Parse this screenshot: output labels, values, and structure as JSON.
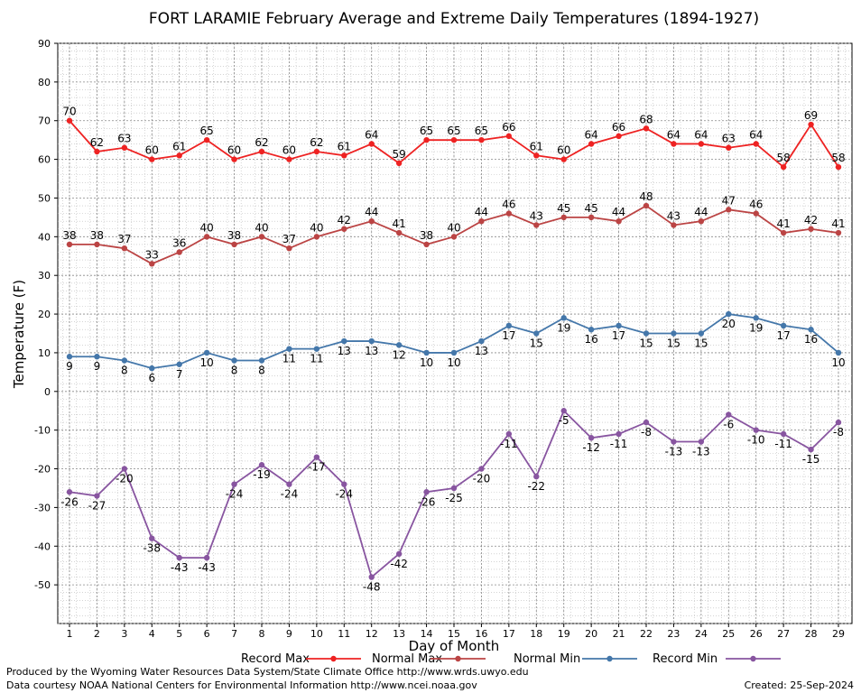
{
  "footer": {
    "produced_by": "Produced by the Wyoming Water Resources Data System/State Climate Office http://www.wrds.uwyo.edu",
    "courtesy": "Data courtesy NOAA National Centers for Environmental Information http://www.ncei.noaa.gov",
    "created": "Created: 25-Sep-2024"
  },
  "chart_data": {
    "type": "line",
    "title": "FORT LARAMIE February Average and Extreme Daily Temperatures (1894-1927)",
    "xlabel": "Day of Month",
    "ylabel": "Temperature (F)",
    "ylim": [
      -60,
      90
    ],
    "yticks": [
      90,
      80,
      70,
      60,
      50,
      40,
      30,
      20,
      10,
      0,
      -10,
      -20,
      -30,
      -40,
      -50
    ],
    "x": [
      1,
      2,
      3,
      4,
      5,
      6,
      7,
      8,
      9,
      10,
      11,
      12,
      13,
      14,
      15,
      16,
      17,
      18,
      19,
      20,
      21,
      22,
      23,
      24,
      25,
      26,
      27,
      28,
      29
    ],
    "grid": true,
    "legend_position": "bottom",
    "series": [
      {
        "name": "Record Max",
        "color": "#ee2222",
        "label_pos": "above",
        "values": [
          70,
          62,
          63,
          60,
          61,
          65,
          60,
          62,
          60,
          62,
          61,
          64,
          59,
          65,
          65,
          65,
          66,
          61,
          60,
          64,
          66,
          68,
          64,
          64,
          63,
          64,
          58,
          69,
          58
        ]
      },
      {
        "name": "Normal Max",
        "color": "#bb4444",
        "label_pos": "above",
        "values": [
          38,
          38,
          37,
          33,
          36,
          40,
          38,
          40,
          37,
          40,
          42,
          44,
          41,
          38,
          40,
          44,
          46,
          43,
          45,
          45,
          44,
          48,
          43,
          44,
          47,
          46,
          41,
          42,
          41
        ]
      },
      {
        "name": "Normal Min",
        "color": "#4477aa",
        "label_pos": "below",
        "values": [
          9,
          9,
          8,
          6,
          7,
          10,
          8,
          8,
          11,
          11,
          13,
          13,
          12,
          10,
          10,
          13,
          17,
          15,
          19,
          16,
          17,
          15,
          15,
          15,
          20,
          19,
          17,
          16,
          10
        ]
      },
      {
        "name": "Record Min",
        "color": "#8855a0",
        "label_pos": "below",
        "values": [
          -26,
          -27,
          -20,
          -38,
          -43,
          -43,
          -24,
          -19,
          -24,
          -17,
          -24,
          -48,
          -42,
          -26,
          -25,
          -20,
          -11,
          -22,
          -5,
          -12,
          -11,
          -8,
          -13,
          -13,
          -6,
          -10,
          -11,
          -15,
          -8
        ]
      }
    ]
  }
}
